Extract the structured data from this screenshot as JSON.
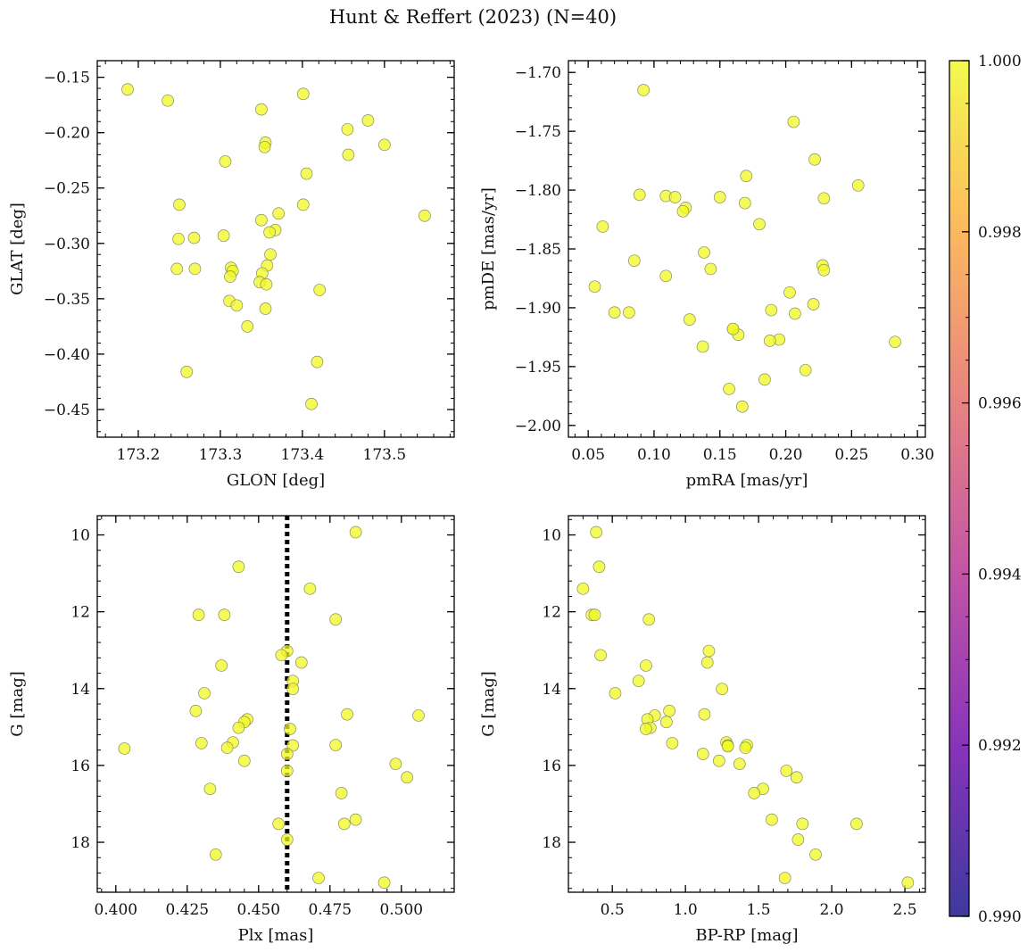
{
  "figure": {
    "title": "Hunt & Reffert (2023) (N=40)"
  },
  "colorbar": {
    "range": [
      0.99,
      1.0
    ],
    "ticks": [
      0.99,
      0.992,
      0.994,
      0.996,
      0.998,
      1.0
    ],
    "tick_labels": [
      "0.990",
      "0.992",
      "0.994",
      "0.996",
      "0.998",
      "1.000"
    ],
    "colormap": "plasma",
    "stops": [
      "#0d0887",
      "#6a00a8",
      "#b12a90",
      "#e16462",
      "#fca636",
      "#f0f921"
    ]
  },
  "marker": {
    "fill": "#f0f921",
    "edge": "#8a8a60",
    "opacity": 0.75
  },
  "reference_line": {
    "panel": 2,
    "x": 0.46,
    "style": "dotted",
    "color": "#000000"
  },
  "chart_data": [
    {
      "type": "scatter",
      "xlabel": "GLON [deg]",
      "ylabel": "GLAT [deg]",
      "xlim": [
        173.15,
        173.585
      ],
      "ylim": [
        -0.475,
        -0.135
      ],
      "y_inverted": false,
      "xticks": [
        173.2,
        173.3,
        173.4,
        173.5
      ],
      "xtick_labels": [
        "173.2",
        "173.3",
        "173.4",
        "173.5"
      ],
      "yticks": [
        -0.15,
        -0.2,
        -0.25,
        -0.3,
        -0.35,
        -0.4,
        -0.45
      ],
      "ytick_labels": [
        "−0.15",
        "−0.20",
        "−0.25",
        "−0.30",
        "−0.35",
        "−0.40",
        "−0.45"
      ],
      "x": [
        173.187,
        173.236,
        173.35,
        173.401,
        173.48,
        173.455,
        173.355,
        173.354,
        173.5,
        173.456,
        173.306,
        173.405,
        173.25,
        173.401,
        173.549,
        173.371,
        173.35,
        173.367,
        173.36,
        173.249,
        173.268,
        173.304,
        173.361,
        173.247,
        173.269,
        173.357,
        173.313,
        173.315,
        173.351,
        173.312,
        173.348,
        173.356,
        173.421,
        173.311,
        173.32,
        173.355,
        173.333,
        173.418,
        173.259,
        173.411
      ],
      "y": [
        -0.161,
        -0.171,
        -0.179,
        -0.165,
        -0.189,
        -0.197,
        -0.209,
        -0.213,
        -0.211,
        -0.22,
        -0.226,
        -0.237,
        -0.265,
        -0.265,
        -0.275,
        -0.273,
        -0.279,
        -0.288,
        -0.29,
        -0.296,
        -0.295,
        -0.293,
        -0.31,
        -0.323,
        -0.323,
        -0.32,
        -0.322,
        -0.325,
        -0.327,
        -0.33,
        -0.335,
        -0.337,
        -0.342,
        -0.352,
        -0.356,
        -0.359,
        -0.375,
        -0.407,
        -0.416,
        -0.445
      ]
    },
    {
      "type": "scatter",
      "xlabel": "pmRA [mas/yr]",
      "ylabel": "pmDE [mas/yr]",
      "xlim": [
        0.035,
        0.306
      ],
      "ylim": [
        -2.01,
        -1.69
      ],
      "y_inverted": false,
      "xticks": [
        0.05,
        0.1,
        0.15,
        0.2,
        0.25,
        0.3
      ],
      "xtick_labels": [
        "0.05",
        "0.10",
        "0.15",
        "0.20",
        "0.25",
        "0.30"
      ],
      "yticks": [
        -1.7,
        -1.75,
        -1.8,
        -1.85,
        -1.9,
        -1.95,
        -2.0
      ],
      "ytick_labels": [
        "−1.70",
        "−1.75",
        "−1.80",
        "−1.85",
        "−1.90",
        "−1.95",
        "−2.00"
      ],
      "x": [
        0.092,
        0.206,
        0.222,
        0.255,
        0.17,
        0.089,
        0.109,
        0.116,
        0.15,
        0.229,
        0.169,
        0.124,
        0.122,
        0.061,
        0.18,
        0.138,
        0.085,
        0.055,
        0.143,
        0.109,
        0.228,
        0.229,
        0.203,
        0.221,
        0.07,
        0.081,
        0.207,
        0.189,
        0.127,
        0.16,
        0.164,
        0.195,
        0.188,
        0.137,
        0.283,
        0.215,
        0.184,
        0.157,
        0.167,
        0.16
      ],
      "y": [
        -1.715,
        -1.742,
        -1.774,
        -1.796,
        -1.788,
        -1.804,
        -1.805,
        -1.806,
        -1.806,
        -1.807,
        -1.811,
        -1.815,
        -1.818,
        -1.831,
        -1.829,
        -1.853,
        -1.86,
        -1.882,
        -1.867,
        -1.873,
        -1.864,
        -1.868,
        -1.887,
        -1.897,
        -1.904,
        -1.904,
        -1.905,
        -1.902,
        -1.91,
        -1.918,
        -1.923,
        -1.927,
        -1.928,
        -1.933,
        -1.929,
        -1.953,
        -1.961,
        -1.969,
        -1.984,
        -1.918
      ]
    },
    {
      "type": "scatter",
      "xlabel": "Plx [mas]",
      "ylabel": "G [mag]",
      "xlim": [
        0.3935,
        0.5185
      ],
      "ylim": [
        19.3,
        9.5
      ],
      "y_inverted": true,
      "xticks": [
        0.4,
        0.425,
        0.45,
        0.475,
        0.5
      ],
      "xtick_labels": [
        "0.400",
        "0.425",
        "0.450",
        "0.475",
        "0.500"
      ],
      "yticks": [
        10,
        12,
        14,
        16,
        18
      ],
      "ytick_labels": [
        "10",
        "12",
        "14",
        "16",
        "18"
      ],
      "x": [
        0.484,
        0.443,
        0.468,
        0.429,
        0.438,
        0.477,
        0.46,
        0.458,
        0.465,
        0.437,
        0.462,
        0.462,
        0.431,
        0.481,
        0.506,
        0.428,
        0.446,
        0.445,
        0.443,
        0.461,
        0.441,
        0.43,
        0.477,
        0.462,
        0.439,
        0.46,
        0.445,
        0.498,
        0.46,
        0.502,
        0.433,
        0.479,
        0.484,
        0.48,
        0.457,
        0.46,
        0.435,
        0.403,
        0.471,
        0.494
      ],
      "y": [
        9.93,
        10.83,
        11.4,
        12.08,
        12.08,
        12.2,
        13.02,
        13.13,
        13.32,
        13.4,
        13.8,
        14.01,
        14.12,
        14.67,
        14.7,
        14.58,
        14.8,
        14.87,
        15.02,
        15.05,
        15.4,
        15.42,
        15.47,
        15.48,
        15.54,
        15.7,
        15.88,
        15.96,
        16.14,
        16.31,
        16.61,
        16.72,
        17.41,
        17.52,
        17.52,
        17.93,
        18.32,
        15.56,
        18.93,
        19.05
      ]
    },
    {
      "type": "scatter",
      "xlabel": "BP-RP [mag]",
      "ylabel": "G [mag]",
      "xlim": [
        0.2,
        2.64
      ],
      "ylim": [
        19.3,
        9.5
      ],
      "y_inverted": true,
      "xticks": [
        0.5,
        1.0,
        1.5,
        2.0,
        2.5
      ],
      "xtick_labels": [
        "0.5",
        "1.0",
        "1.5",
        "2.0",
        "2.5"
      ],
      "yticks": [
        10,
        12,
        14,
        16,
        18
      ],
      "ytick_labels": [
        "10",
        "12",
        "14",
        "16",
        "18"
      ],
      "x": [
        0.39,
        0.41,
        0.3,
        0.36,
        0.38,
        0.75,
        0.42,
        1.16,
        1.15,
        0.73,
        1.25,
        0.68,
        0.52,
        0.79,
        1.13,
        0.89,
        0.74,
        0.87,
        0.76,
        0.73,
        1.28,
        0.91,
        1.29,
        1.42,
        1.12,
        1.41,
        1.23,
        1.37,
        1.69,
        1.76,
        1.53,
        1.47,
        1.59,
        1.8,
        2.17,
        1.77,
        1.89,
        1.68,
        2.52,
        1.29
      ],
      "y": [
        9.93,
        10.83,
        11.4,
        12.08,
        12.08,
        12.2,
        13.13,
        13.02,
        13.32,
        13.4,
        14.01,
        13.8,
        14.12,
        14.7,
        14.67,
        14.58,
        14.8,
        14.87,
        15.02,
        15.05,
        15.4,
        15.42,
        15.48,
        15.47,
        15.7,
        15.54,
        15.88,
        15.96,
        16.14,
        16.31,
        16.61,
        16.72,
        17.41,
        17.52,
        17.52,
        17.93,
        18.32,
        18.93,
        19.05,
        15.5
      ]
    }
  ]
}
